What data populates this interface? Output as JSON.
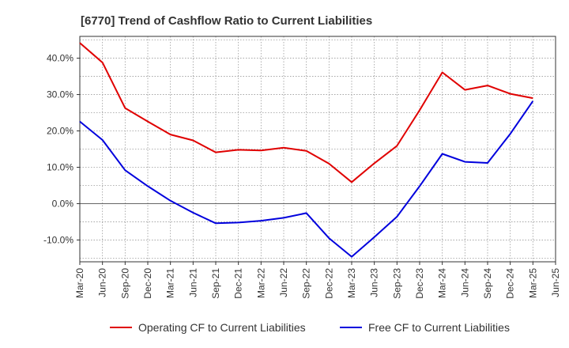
{
  "chart_data": {
    "type": "line",
    "title": "[6770]  Trend of Cashflow Ratio to Current Liabilities",
    "xlabel": "",
    "ylabel": "",
    "ylim": [
      -16,
      46
    ],
    "grid": true,
    "legend_position": "bottom",
    "x": [
      "Mar-20",
      "Jun-20",
      "Sep-20",
      "Dec-20",
      "Mar-21",
      "Jun-21",
      "Sep-21",
      "Dec-21",
      "Mar-22",
      "Jun-22",
      "Sep-22",
      "Dec-22",
      "Mar-23",
      "Jun-23",
      "Sep-23",
      "Dec-23",
      "Mar-24",
      "Jun-24",
      "Sep-24",
      "Dec-24",
      "Mar-25",
      "Jun-25"
    ],
    "y_ticks": [
      40,
      30,
      20,
      10,
      0,
      -10
    ],
    "y_tick_labels": [
      "40.0%",
      "30.0%",
      "20.0%",
      "10.0%",
      "0.0%",
      "-10.0%"
    ],
    "series": [
      {
        "name": "Operating CF to Current Liabilities",
        "color": "#e00000",
        "values": [
          44.2,
          38.8,
          26.3,
          22.6,
          19.0,
          17.4,
          14.1,
          14.8,
          14.6,
          15.4,
          14.5,
          11.0,
          5.9,
          11.1,
          15.9,
          25.7,
          36.1,
          31.3,
          32.5,
          30.2,
          29.0,
          null
        ]
      },
      {
        "name": "Free CF to Current Liabilities",
        "color": "#0000dd",
        "values": [
          22.6,
          17.5,
          9.2,
          4.8,
          0.8,
          -2.5,
          -5.4,
          -5.2,
          -4.7,
          -3.9,
          -2.6,
          -9.5,
          -14.6,
          -9.2,
          -3.6,
          4.8,
          13.7,
          11.5,
          11.2,
          19.2,
          28.2,
          null
        ]
      }
    ]
  },
  "colors": {
    "axis": "#333333",
    "grid": "#999999",
    "background": "#ffffff"
  }
}
